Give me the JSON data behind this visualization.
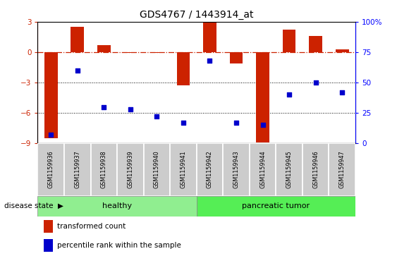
{
  "title": "GDS4767 / 1443914_at",
  "samples": [
    "GSM1159936",
    "GSM1159937",
    "GSM1159938",
    "GSM1159939",
    "GSM1159940",
    "GSM1159941",
    "GSM1159942",
    "GSM1159943",
    "GSM1159944",
    "GSM1159945",
    "GSM1159946",
    "GSM1159947"
  ],
  "bar_values": [
    -8.5,
    2.5,
    0.7,
    -0.05,
    -0.1,
    -3.3,
    3.0,
    -1.1,
    -8.9,
    2.2,
    1.6,
    0.25
  ],
  "bar_color": "#cc2200",
  "dot_color": "#0000cc",
  "dot_right_values": [
    7,
    60,
    30,
    28,
    22,
    17,
    68,
    17,
    15,
    40,
    50,
    42
  ],
  "ylim": [
    -9,
    3
  ],
  "yticks": [
    -9,
    -6,
    -3,
    0,
    3
  ],
  "right_yticks": [
    0,
    25,
    50,
    75,
    100
  ],
  "right_ylim": [
    0,
    100
  ],
  "legend_bar_label": "transformed count",
  "legend_dot_label": "percentile rank within the sample",
  "disease_state_label": "disease state",
  "bar_width": 0.5,
  "healthy_color": "#90ee90",
  "tumor_color": "#55ee55",
  "tick_bg_color": "#cccccc",
  "dashed_line_color": "#cc2200"
}
